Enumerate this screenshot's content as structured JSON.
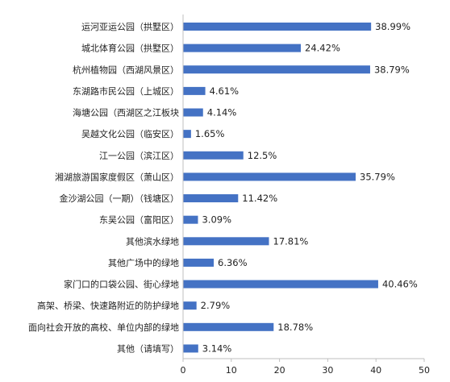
{
  "chart_data": {
    "type": "bar",
    "orientation": "horizontal",
    "categories": [
      "运河亚运公园（拱墅区）",
      "城北体育公园（拱墅区）",
      "杭州植物园（西湖风景区）",
      "东湖路市民公园（上城区）",
      "海塘公园（西湖区之江板块",
      "吴越文化公园（临安区）",
      "江一公园（滨江区）",
      "湘湖旅游国家度假区（萧山区）",
      "金沙湖公园（一期）（钱塘区）",
      "东吴公园（富阳区）",
      "其他滨水绿地",
      "其他广场中的绿地",
      "家门口的口袋公园、街心绿地",
      "高架、桥梁、快速路附近的防护绿地",
      "面向社会开放的高校、单位内部的绿地",
      "其他（请填写）"
    ],
    "values": [
      38.99,
      24.42,
      38.79,
      4.61,
      4.14,
      1.65,
      12.5,
      35.79,
      11.42,
      3.09,
      17.81,
      6.36,
      40.46,
      2.79,
      18.78,
      3.14
    ],
    "value_labels": [
      "38.99%",
      "24.42%",
      "38.79%",
      "4.61%",
      "4.14%",
      "1.65%",
      "12.5%",
      "35.79%",
      "11.42%",
      "3.09%",
      "17.81%",
      "6.36%",
      "40.46%",
      "2.79%",
      "18.78%",
      "3.14%"
    ],
    "xlim": [
      0,
      50
    ],
    "xticks": [
      "0",
      "10",
      "20",
      "30",
      "40",
      "50"
    ],
    "grid": false,
    "bar_color": "#4472c4",
    "title": "",
    "xlabel": "",
    "ylabel": ""
  }
}
